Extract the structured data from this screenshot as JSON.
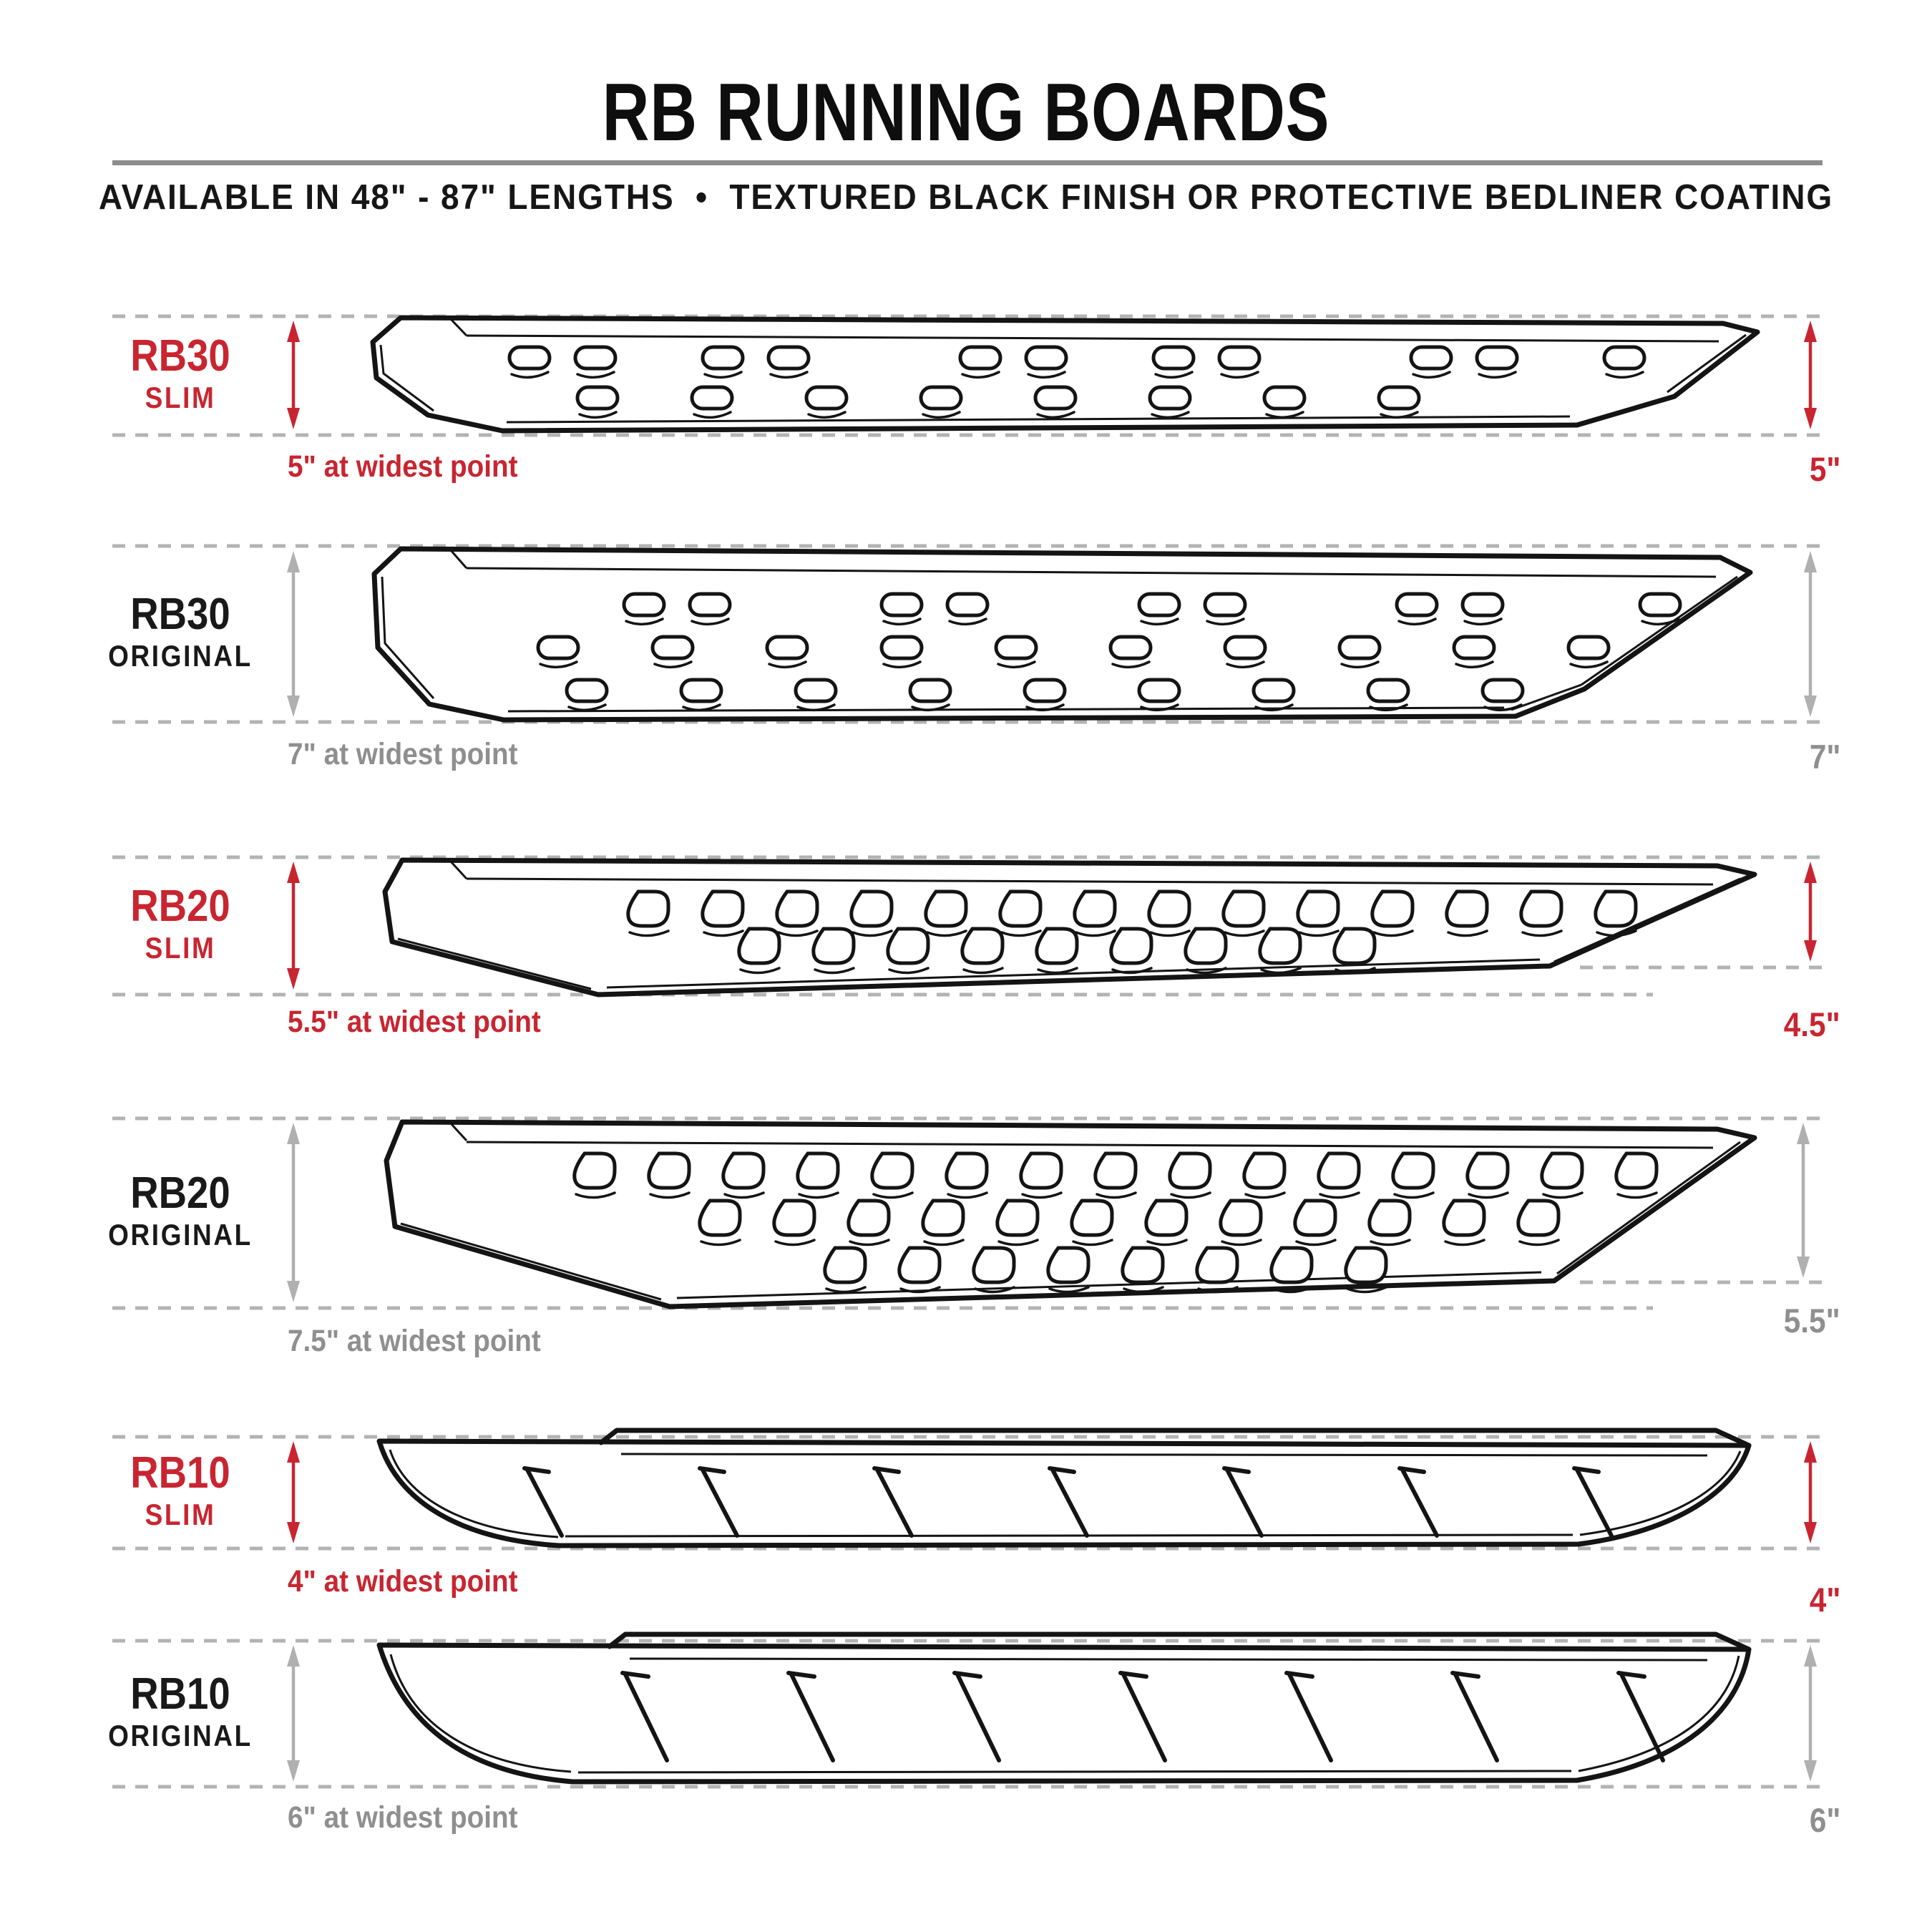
{
  "header": {
    "title": "RB RUNNING BOARDS",
    "subtitle": "AVAILABLE IN 48\" - 87\" LENGTHS  •  TEXTURED BLACK FINISH OR PROTECTIVE BEDLINER COATING"
  },
  "colors": {
    "accent_red": "#c82530",
    "gray_text": "#8f8f8f",
    "gray_arrow": "#b0b0b0",
    "dash_gray": "#b3b3b3",
    "divider_gray": "#8c8c8c",
    "line_black": "#141414"
  },
  "rows": [
    {
      "id": "rb30-slim",
      "model": "RB30",
      "variant": "SLIM",
      "theme": "red",
      "widest_label": "5\" at widest point",
      "right_height": "5\""
    },
    {
      "id": "rb30-original",
      "model": "RB30",
      "variant": "ORIGINAL",
      "theme": "dark",
      "widest_label": "7\" at widest point",
      "right_height": "7\""
    },
    {
      "id": "rb20-slim",
      "model": "RB20",
      "variant": "SLIM",
      "theme": "red",
      "widest_label": "5.5\" at widest point",
      "right_height": "4.5\""
    },
    {
      "id": "rb20-original",
      "model": "RB20",
      "variant": "ORIGINAL",
      "theme": "dark",
      "widest_label": "7.5\" at widest point",
      "right_height": "5.5\""
    },
    {
      "id": "rb10-slim",
      "model": "RB10",
      "variant": "SLIM",
      "theme": "red",
      "widest_label": "4\" at widest point",
      "right_height": "4\""
    },
    {
      "id": "rb10-original",
      "model": "RB10",
      "variant": "ORIGINAL",
      "theme": "dark",
      "widest_label": "6\" at widest point",
      "right_height": "6\""
    }
  ]
}
